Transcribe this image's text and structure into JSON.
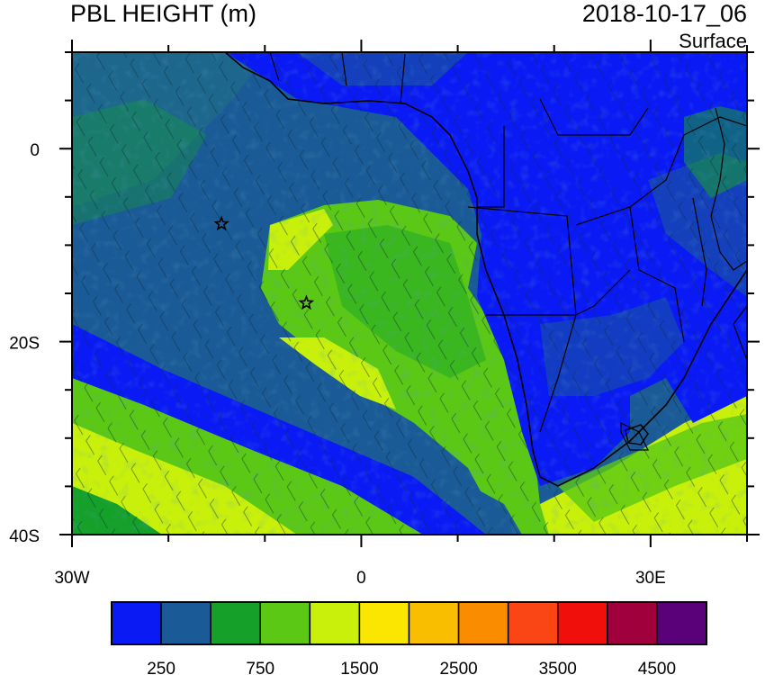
{
  "header": {
    "title": "PBL HEIGHT (m)",
    "datetime": "2018-10-17_06",
    "level": "Surface"
  },
  "map": {
    "lon_range": [
      -30,
      40
    ],
    "lat_range": [
      -40,
      10
    ],
    "x_ticks": [
      {
        "value": -30,
        "label": "30W"
      },
      {
        "value": 0,
        "label": "0"
      },
      {
        "value": 30,
        "label": "30E"
      }
    ],
    "y_ticks": [
      {
        "value": 0,
        "label": "0"
      },
      {
        "value": -20,
        "label": "20S"
      },
      {
        "value": -40,
        "label": "40S"
      }
    ],
    "markers": [
      {
        "name": "star-marker-ascension-area",
        "lon": -14.5,
        "lat": -7.8
      },
      {
        "name": "star-marker-st-helena-area",
        "lon": -5.7,
        "lat": -16.0
      }
    ]
  },
  "colorbar": {
    "colors": [
      "#0a1af5",
      "#1a5a96",
      "#15a02a",
      "#5ac814",
      "#c8f00a",
      "#fae600",
      "#fabe00",
      "#fa8c00",
      "#fa4614",
      "#f00f0a",
      "#a0003c",
      "#5a0078"
    ],
    "labels": [
      "250",
      "750",
      "1500",
      "2500",
      "3500",
      "4500"
    ]
  }
}
